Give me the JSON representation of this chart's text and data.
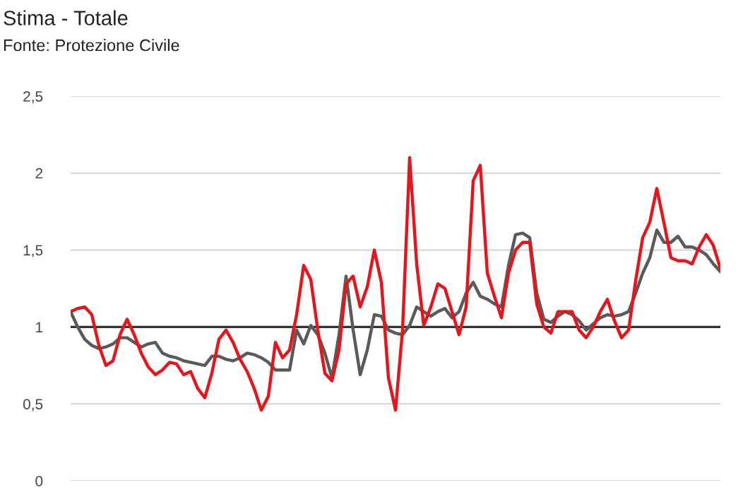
{
  "chart_data": {
    "type": "line",
    "title": "Stima - Totale",
    "subtitle": "Fonte: Protezione Civile",
    "categories": [
      null,
      null,
      null,
      null,
      null,
      null,
      null,
      null,
      null,
      null,
      null,
      null,
      null,
      null,
      null,
      null,
      null,
      null,
      null,
      null,
      null,
      null,
      null,
      null,
      null,
      null,
      null,
      null,
      null,
      null,
      null,
      null,
      null,
      null,
      null,
      null,
      null,
      null,
      null,
      null,
      null,
      null,
      null,
      null,
      null,
      null,
      null,
      null,
      null,
      null,
      null,
      null,
      null,
      null,
      null,
      null,
      null,
      null,
      null,
      null,
      null,
      null,
      null,
      null,
      null,
      null,
      null,
      null,
      null,
      null,
      null,
      null,
      null,
      null,
      null,
      null,
      null,
      null,
      null,
      null,
      null,
      null,
      null,
      null,
      null,
      null,
      null,
      null,
      null,
      null,
      null,
      null,
      null
    ],
    "ylim": [
      0,
      2.5
    ],
    "yticks": [
      {
        "value": 0,
        "label": "0"
      },
      {
        "value": 0.5,
        "label": "0,5"
      },
      {
        "value": 1,
        "label": "1"
      },
      {
        "value": 1.5,
        "label": "1,5"
      },
      {
        "value": 2,
        "label": "2"
      },
      {
        "value": 2.5,
        "label": "2,5"
      }
    ],
    "tick_labels": "y",
    "grid": "y",
    "line_style": "solid",
    "marker": "none",
    "ref_lines": [
      {
        "axis": "y",
        "value": 1,
        "color": "#333333"
      }
    ],
    "series": [
      {
        "color": "#5a5a5a",
        "values": [
          1.1,
          1.0,
          0.92,
          0.88,
          0.86,
          0.87,
          0.89,
          0.93,
          0.93,
          0.9,
          0.87,
          0.89,
          0.9,
          0.83,
          0.81,
          0.8,
          0.78,
          0.77,
          0.76,
          0.75,
          0.81,
          0.81,
          0.79,
          0.78,
          0.8,
          0.83,
          0.82,
          0.8,
          0.77,
          0.72,
          0.72,
          0.72,
          0.98,
          0.89,
          1.01,
          0.95,
          0.83,
          0.67,
          0.95,
          1.33,
          0.98,
          0.69,
          0.85,
          1.08,
          1.07,
          0.98,
          0.96,
          0.95,
          1.01,
          1.13,
          1.1,
          1.07,
          1.1,
          1.12,
          1.06,
          1.1,
          1.22,
          1.29,
          1.2,
          1.18,
          1.15,
          1.13,
          1.4,
          1.6,
          1.61,
          1.58,
          1.22,
          1.05,
          1.03,
          1.07,
          1.1,
          1.08,
          1.04,
          0.98,
          1.02,
          1.06,
          1.08,
          1.07,
          1.08,
          1.1,
          1.22,
          1.35,
          1.45,
          1.63,
          1.55,
          1.55,
          1.59,
          1.52,
          1.52,
          1.5,
          1.47,
          1.41,
          1.36
        ]
      },
      {
        "color": "#e8141c",
        "values": [
          1.1,
          1.12,
          1.13,
          1.08,
          0.88,
          0.75,
          0.78,
          0.95,
          1.05,
          0.95,
          0.83,
          0.74,
          0.69,
          0.72,
          0.77,
          0.76,
          0.69,
          0.71,
          0.6,
          0.54,
          0.7,
          0.92,
          0.98,
          0.9,
          0.79,
          0.71,
          0.6,
          0.46,
          0.55,
          0.9,
          0.8,
          0.85,
          1.08,
          1.4,
          1.31,
          0.98,
          0.7,
          0.65,
          0.85,
          1.28,
          1.33,
          1.13,
          1.26,
          1.5,
          1.29,
          0.67,
          0.46,
          0.98,
          2.1,
          1.41,
          1.01,
          1.13,
          1.28,
          1.25,
          1.1,
          0.95,
          1.13,
          1.95,
          2.05,
          1.35,
          1.2,
          1.06,
          1.35,
          1.5,
          1.55,
          1.55,
          1.15,
          1.0,
          0.96,
          1.1,
          1.1,
          1.1,
          0.98,
          0.93,
          1.0,
          1.1,
          1.18,
          1.04,
          0.93,
          0.98,
          1.3,
          1.58,
          1.68,
          1.9,
          1.68,
          1.45,
          1.43,
          1.43,
          1.41,
          1.52,
          1.6,
          1.53,
          1.38
        ]
      }
    ]
  }
}
